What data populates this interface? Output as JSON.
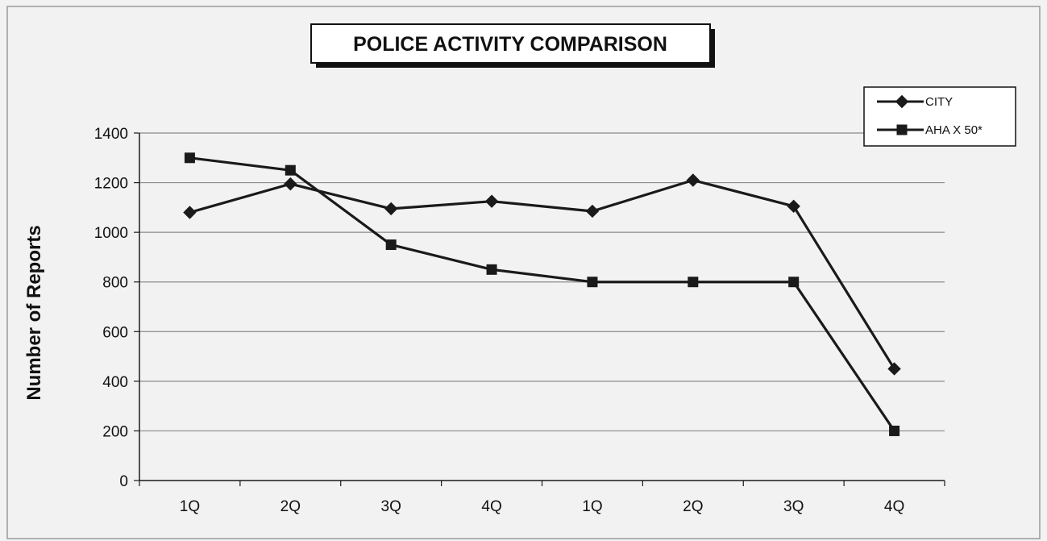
{
  "chart_data": {
    "type": "line",
    "title": "POLICE ACTIVITY COMPARISON",
    "xlabel": "",
    "ylabel": "Number of Reports",
    "categories": [
      "1Q",
      "2Q",
      "3Q",
      "4Q",
      "1Q",
      "2Q",
      "3Q",
      "4Q"
    ],
    "ylim": [
      0,
      1400
    ],
    "yticks": [
      0,
      200,
      400,
      600,
      800,
      1000,
      1200,
      1400
    ],
    "grid": true,
    "legend_position": "top-right",
    "series": [
      {
        "name": "CITY",
        "marker": "diamond",
        "values": [
          1080,
          1195,
          1095,
          1125,
          1085,
          1210,
          1105,
          450
        ]
      },
      {
        "name": "AHA X 50*",
        "marker": "square",
        "values": [
          1300,
          1250,
          950,
          850,
          800,
          800,
          800,
          200
        ]
      }
    ]
  },
  "colors": {
    "line": "#1a1a1a",
    "grid": "#8a8a8a",
    "background": "#f2f2f2"
  }
}
